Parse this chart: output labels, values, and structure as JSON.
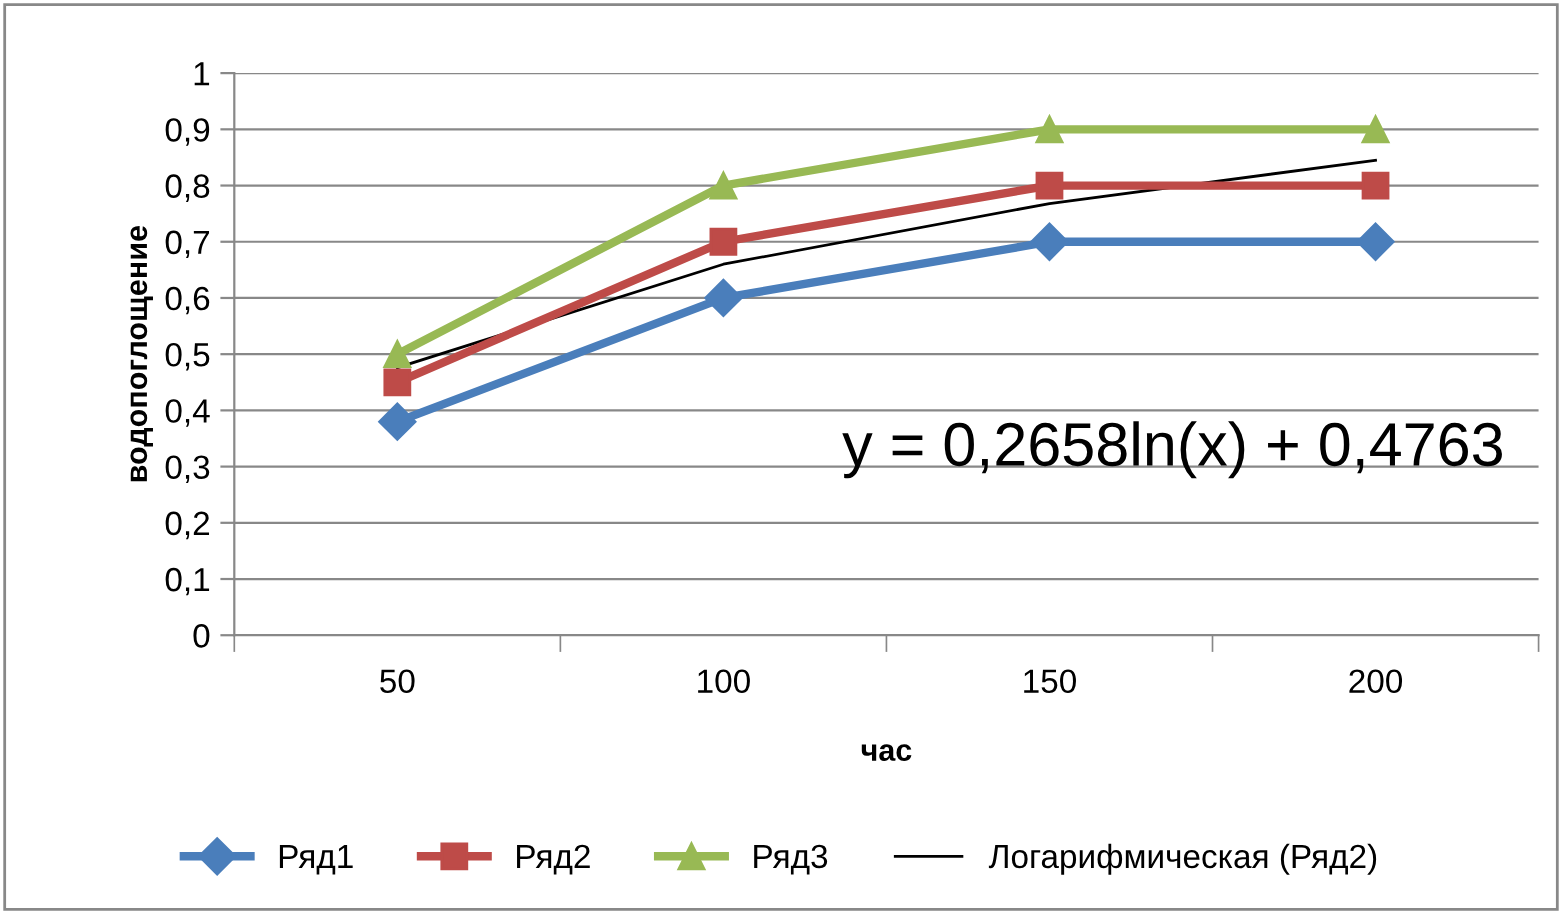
{
  "chart_data": {
    "type": "line",
    "xlabel": "час",
    "ylabel": "водопоглощение",
    "categories": [
      "50",
      "100",
      "150",
      "200"
    ],
    "series": [
      {
        "name": "Ряд1",
        "color": "#4a7ebb",
        "marker": "diamond",
        "values": [
          0.38,
          0.6,
          0.7,
          0.7
        ]
      },
      {
        "name": "Ряд2",
        "color": "#be4b48",
        "marker": "square",
        "values": [
          0.45,
          0.7,
          0.8,
          0.8
        ]
      },
      {
        "name": "Ряд3",
        "color": "#98b954",
        "marker": "triangle",
        "values": [
          0.5,
          0.8,
          0.9,
          0.9
        ]
      },
      {
        "name": "Логарифмическая (Ряд2)",
        "color": "#000000",
        "marker": "none",
        "values": [
          0.476,
          0.66,
          0.768,
          0.845
        ]
      }
    ],
    "ylim": [
      0,
      1
    ],
    "yticks": [
      0,
      {
        "value": 0.1,
        "label": "0,1"
      },
      {
        "value": 0.2,
        "label": "0,2"
      },
      {
        "value": 0.3,
        "label": "0,3"
      },
      {
        "value": 0.4,
        "label": "0,4"
      },
      {
        "value": 0.5,
        "label": "0,5"
      },
      {
        "value": 0.6,
        "label": "0,6"
      },
      {
        "value": 0.7,
        "label": "0,7"
      },
      {
        "value": 0.8,
        "label": "0,8"
      },
      {
        "value": 0.9,
        "label": "0,9"
      },
      1
    ],
    "grid": "y",
    "legend": "bottom",
    "annotations": [
      "y = 0,2658ln(x) + 0,4763"
    ]
  }
}
